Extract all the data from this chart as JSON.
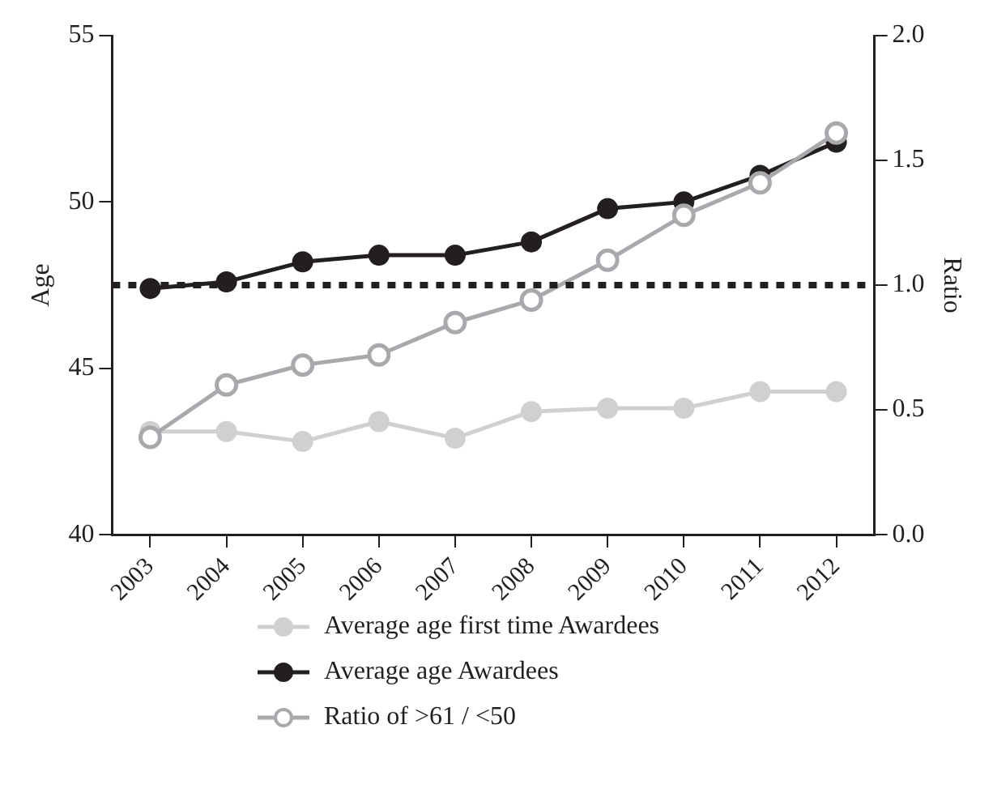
{
  "chart_data": {
    "type": "line",
    "ylabel": "Age",
    "y2label": "Ratio",
    "categories": [
      "2003",
      "2004",
      "2005",
      "2006",
      "2007",
      "2008",
      "2009",
      "2010",
      "2011",
      "2012"
    ],
    "series": [
      {
        "name": "Average age first time Awardees",
        "color": "#cfd0d2",
        "values": [
          43.1,
          43.1,
          42.8,
          43.4,
          42.9,
          43.7,
          43.8,
          43.8,
          44.3,
          44.3
        ]
      },
      {
        "name": "Average age Awardees",
        "color": "#231f20",
        "values": [
          47.4,
          47.6,
          48.2,
          48.4,
          48.4,
          48.8,
          49.8,
          50.0,
          50.8,
          51.8
        ]
      },
      {
        "name": "Ratio of >61 / <50",
        "color": "#a7a9ac",
        "axis": "y2",
        "values": [
          0.39,
          0.6,
          0.68,
          0.72,
          0.85,
          0.94,
          1.1,
          1.28,
          1.41,
          1.61
        ]
      }
    ],
    "ylim": [
      40,
      55
    ],
    "yticks": [
      40,
      45,
      50,
      55
    ],
    "y2lim": [
      0,
      2
    ],
    "y2ticks": [
      {
        "value": 0,
        "label": "0.0"
      },
      {
        "value": 0.5,
        "label": "0.5"
      },
      {
        "value": 1,
        "label": "1.0"
      },
      {
        "value": 1.5,
        "label": "1.5"
      },
      {
        "value": 2,
        "label": "2.0"
      }
    ],
    "ref_lines": [
      {
        "axis": "y2",
        "value": 1.0,
        "color": "#231f20",
        "line_style": "dotted"
      }
    ],
    "grid": false,
    "legend": "bottom",
    "marker": "circle",
    "line_style": "solid"
  }
}
